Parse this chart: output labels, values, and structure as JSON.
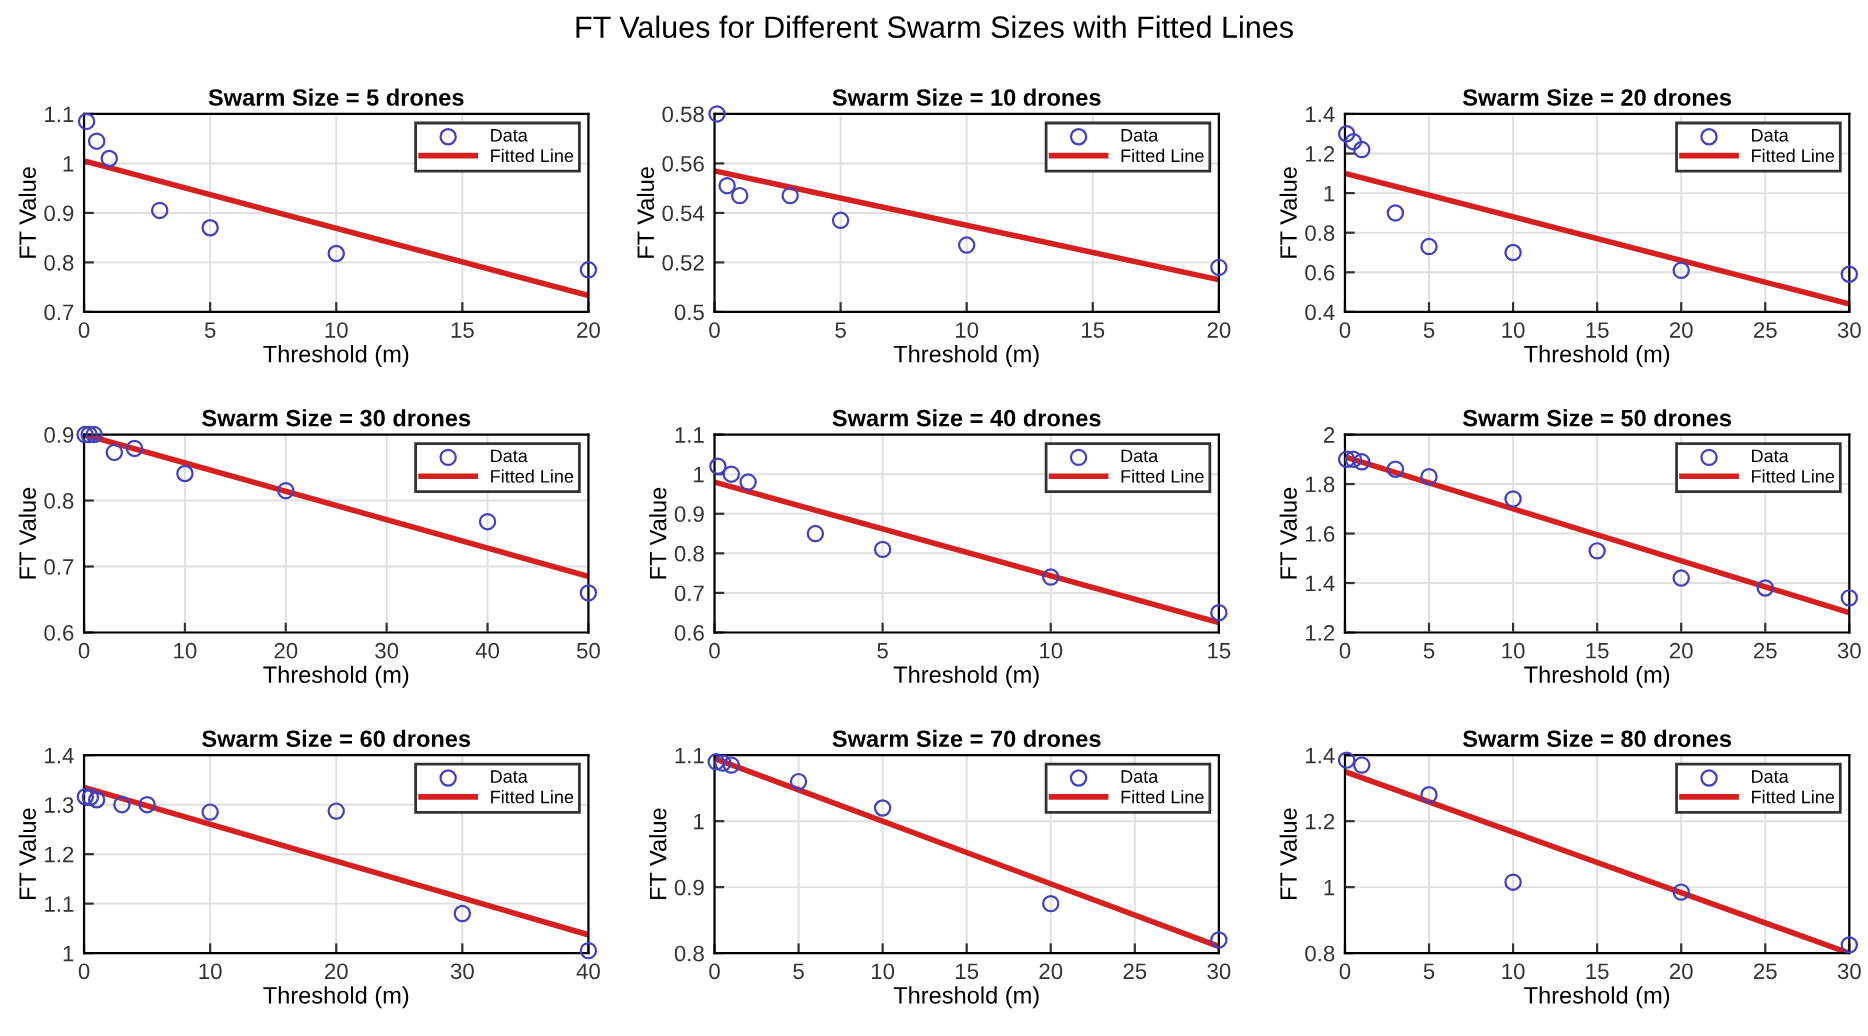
{
  "chart_data": [
    {
      "type": "scatter",
      "title": "Swarm Size = 5 drones",
      "xlabel": "Threshold (m)",
      "ylabel": "FT Value",
      "annotations": [
        "FT Values for Different Swarm Sizes with Fitted Lines"
      ],
      "xlim": [
        0,
        20
      ],
      "xticks": [
        0,
        5,
        10,
        15,
        20
      ],
      "ylim": [
        0.7,
        1.1
      ],
      "yticks": [
        0.7,
        0.8,
        0.9,
        1,
        1.1
      ],
      "grid": true,
      "legend": "top right",
      "series": [
        {
          "name": "Data",
          "marker": "circle",
          "color": "#4040c0",
          "x": [
            0.1,
            0.5,
            1,
            3,
            5,
            10,
            20
          ],
          "values": [
            1.085,
            1.045,
            1.01,
            0.905,
            0.87,
            0.818,
            0.785
          ]
        },
        {
          "name": "Fitted Line",
          "type": "line",
          "color": "#d62020",
          "x": [
            0,
            20
          ],
          "values": [
            1.005,
            0.733
          ]
        }
      ]
    },
    {
      "type": "scatter",
      "title": "Swarm Size = 10 drones",
      "xlabel": "Threshold (m)",
      "ylabel": "FT Value",
      "xlim": [
        0,
        20
      ],
      "xticks": [
        0,
        5,
        10,
        15,
        20
      ],
      "ylim": [
        0.5,
        0.58
      ],
      "yticks": [
        0.5,
        0.52,
        0.54,
        0.56,
        0.58
      ],
      "grid": true,
      "legend": "top right",
      "series": [
        {
          "name": "Data",
          "marker": "circle",
          "color": "#4040c0",
          "x": [
            0.1,
            0.5,
            1,
            3,
            5,
            10,
            20
          ],
          "values": [
            0.58,
            0.551,
            0.547,
            0.547,
            0.537,
            0.527,
            0.518
          ]
        },
        {
          "name": "Fitted Line",
          "type": "line",
          "color": "#d62020",
          "x": [
            0,
            20
          ],
          "values": [
            0.557,
            0.513
          ]
        }
      ]
    },
    {
      "type": "scatter",
      "title": "Swarm Size = 20 drones",
      "xlabel": "Threshold (m)",
      "ylabel": "FT Value",
      "xlim": [
        0,
        30
      ],
      "xticks": [
        0,
        5,
        10,
        15,
        20,
        25,
        30
      ],
      "ylim": [
        0.4,
        1.4
      ],
      "yticks": [
        0.4,
        0.6,
        0.8,
        1,
        1.2,
        1.4
      ],
      "grid": true,
      "legend": "top right",
      "series": [
        {
          "name": "Data",
          "marker": "circle",
          "color": "#4040c0",
          "x": [
            0.1,
            0.5,
            1,
            3,
            5,
            10,
            20,
            30
          ],
          "values": [
            1.3,
            1.26,
            1.22,
            0.9,
            0.73,
            0.7,
            0.61,
            0.59
          ]
        },
        {
          "name": "Fitted Line",
          "type": "line",
          "color": "#d62020",
          "x": [
            0,
            30
          ],
          "values": [
            1.1,
            0.44
          ]
        }
      ]
    },
    {
      "type": "scatter",
      "title": "Swarm Size = 30 drones",
      "xlabel": "Threshold (m)",
      "ylabel": "FT Value",
      "xlim": [
        0,
        50
      ],
      "xticks": [
        0,
        10,
        20,
        30,
        40,
        50
      ],
      "ylim": [
        0.6,
        0.9
      ],
      "yticks": [
        0.6,
        0.7,
        0.8,
        0.9
      ],
      "grid": true,
      "legend": "top right",
      "series": [
        {
          "name": "Data",
          "marker": "circle",
          "color": "#4040c0",
          "x": [
            0.1,
            0.5,
            1,
            3,
            5,
            10,
            20,
            40,
            50
          ],
          "values": [
            0.9,
            0.9,
            0.9,
            0.873,
            0.879,
            0.841,
            0.815,
            0.768,
            0.66
          ]
        },
        {
          "name": "Fitted Line",
          "type": "line",
          "color": "#d62020",
          "x": [
            0,
            50
          ],
          "values": [
            0.9,
            0.685
          ]
        }
      ]
    },
    {
      "type": "scatter",
      "title": "Swarm Size = 40 drones",
      "xlabel": "Threshold (m)",
      "ylabel": "FT Value",
      "xlim": [
        0,
        15
      ],
      "xticks": [
        0,
        5,
        10,
        15
      ],
      "ylim": [
        0.6,
        1.1
      ],
      "yticks": [
        0.6,
        0.7,
        0.8,
        0.9,
        1,
        1.1
      ],
      "grid": true,
      "legend": "top right",
      "series": [
        {
          "name": "Data",
          "marker": "circle",
          "color": "#4040c0",
          "x": [
            0.1,
            0.5,
            1,
            3,
            5,
            10,
            15
          ],
          "values": [
            1.02,
            1.0,
            0.98,
            0.85,
            0.81,
            0.74,
            0.65
          ]
        },
        {
          "name": "Fitted Line",
          "type": "line",
          "color": "#d62020",
          "x": [
            0,
            15
          ],
          "values": [
            0.98,
            0.625
          ]
        }
      ]
    },
    {
      "type": "scatter",
      "title": "Swarm Size = 50 drones",
      "xlabel": "Threshold (m)",
      "ylabel": "FT Value",
      "xlim": [
        0,
        30
      ],
      "xticks": [
        0,
        5,
        10,
        15,
        20,
        25,
        30
      ],
      "ylim": [
        1.2,
        2
      ],
      "yticks": [
        1.2,
        1.4,
        1.6,
        1.8,
        2
      ],
      "grid": true,
      "legend": "top right",
      "series": [
        {
          "name": "Data",
          "marker": "circle",
          "color": "#4040c0",
          "x": [
            0.1,
            0.5,
            1,
            3,
            5,
            10,
            15,
            20,
            25,
            30
          ],
          "values": [
            1.9,
            1.9,
            1.89,
            1.86,
            1.83,
            1.74,
            1.53,
            1.42,
            1.38,
            1.34
          ]
        },
        {
          "name": "Fitted Line",
          "type": "line",
          "color": "#d62020",
          "x": [
            0,
            30
          ],
          "values": [
            1.91,
            1.28
          ]
        }
      ]
    },
    {
      "type": "scatter",
      "title": "Swarm Size = 60 drones",
      "xlabel": "Threshold (m)",
      "ylabel": "FT Value",
      "xlim": [
        0,
        40
      ],
      "xticks": [
        0,
        10,
        20,
        30,
        40
      ],
      "ylim": [
        1,
        1.4
      ],
      "yticks": [
        1,
        1.1,
        1.2,
        1.3,
        1.4
      ],
      "grid": true,
      "legend": "top right",
      "series": [
        {
          "name": "Data",
          "marker": "circle",
          "color": "#4040c0",
          "x": [
            0.1,
            0.5,
            1,
            3,
            5,
            10,
            20,
            30,
            40
          ],
          "values": [
            1.316,
            1.315,
            1.31,
            1.3,
            1.3,
            1.285,
            1.287,
            1.08,
            1.005
          ]
        },
        {
          "name": "Fitted Line",
          "type": "line",
          "color": "#d62020",
          "x": [
            0,
            40
          ],
          "values": [
            1.335,
            1.037
          ]
        }
      ]
    },
    {
      "type": "scatter",
      "title": "Swarm Size = 70 drones",
      "xlabel": "Threshold (m)",
      "ylabel": "FT Value",
      "xlim": [
        0,
        30
      ],
      "xticks": [
        0,
        5,
        10,
        15,
        20,
        25,
        30
      ],
      "ylim": [
        0.8,
        1.1
      ],
      "yticks": [
        0.8,
        0.9,
        1,
        1.1
      ],
      "grid": true,
      "legend": "top right",
      "series": [
        {
          "name": "Data",
          "marker": "circle",
          "color": "#4040c0",
          "x": [
            0.1,
            0.5,
            1,
            5,
            10,
            20,
            30
          ],
          "values": [
            1.09,
            1.088,
            1.085,
            1.06,
            1.02,
            0.875,
            0.82
          ]
        },
        {
          "name": "Fitted Line",
          "type": "line",
          "color": "#d62020",
          "x": [
            0,
            30
          ],
          "values": [
            1.095,
            0.81
          ]
        }
      ]
    },
    {
      "type": "scatter",
      "title": "Swarm Size = 80 drones",
      "xlabel": "Threshold (m)",
      "ylabel": "FT Value",
      "xlim": [
        0,
        30
      ],
      "xticks": [
        0,
        5,
        10,
        15,
        20,
        25,
        30
      ],
      "ylim": [
        0.8,
        1.4
      ],
      "yticks": [
        0.8,
        1,
        1.2,
        1.4
      ],
      "grid": true,
      "legend": "top right",
      "series": [
        {
          "name": "Data",
          "marker": "circle",
          "color": "#4040c0",
          "x": [
            0.1,
            1,
            5,
            10,
            20,
            30
          ],
          "values": [
            1.385,
            1.37,
            1.28,
            1.015,
            0.985,
            0.825
          ]
        },
        {
          "name": "Fitted Line",
          "type": "line",
          "color": "#d62020",
          "x": [
            0,
            30
          ],
          "values": [
            1.35,
            0.8
          ]
        }
      ]
    }
  ]
}
